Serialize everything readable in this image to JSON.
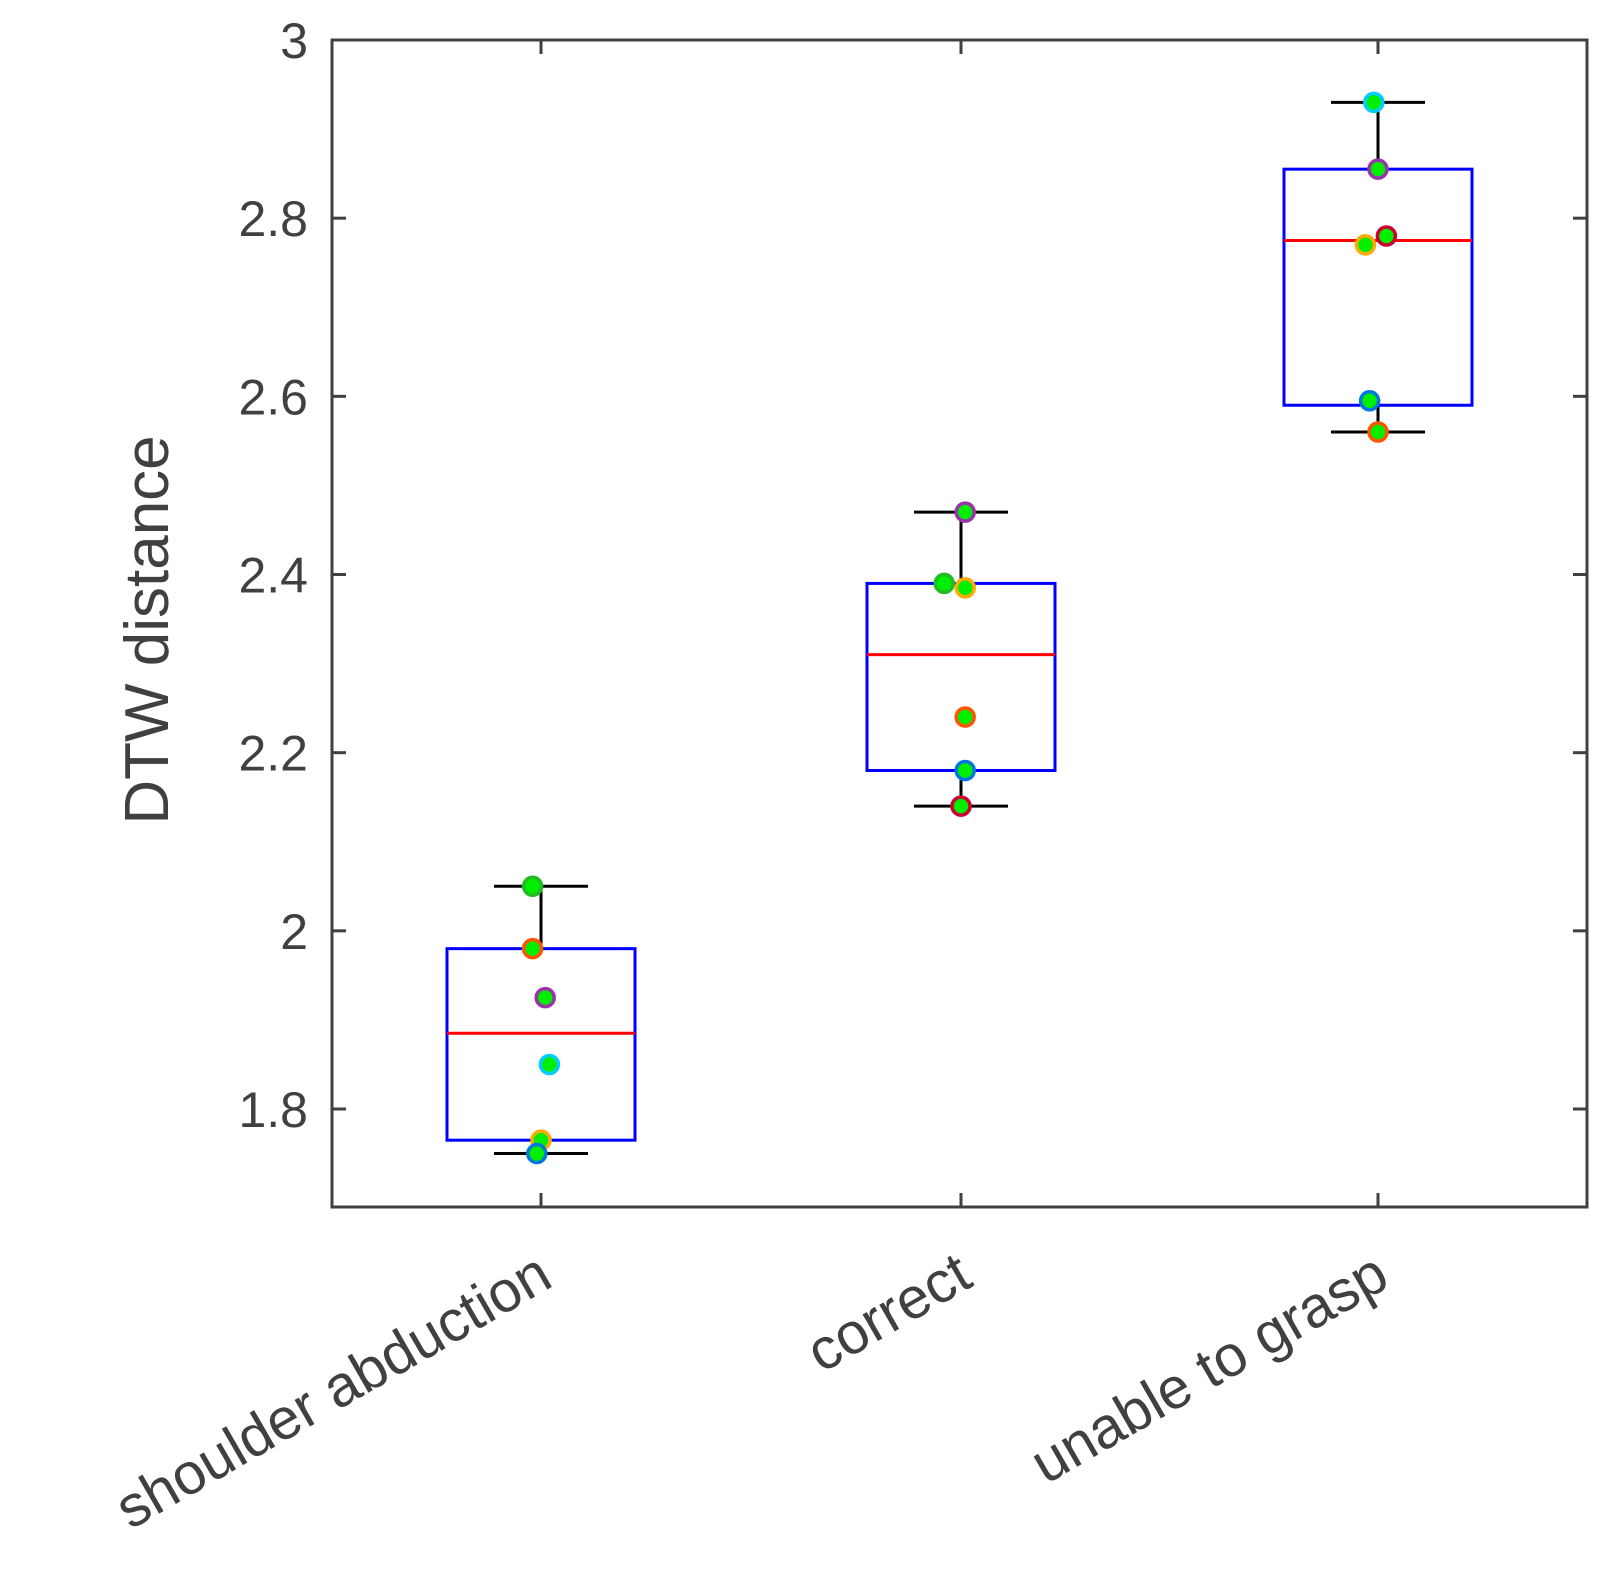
{
  "chart_data": {
    "type": "box",
    "title": "",
    "xlabel": "",
    "ylabel": "DTW distance",
    "ylim": [
      1.69,
      3.0
    ],
    "yticks": [
      1.8,
      2,
      2.2,
      2.4,
      2.6,
      2.8,
      3
    ],
    "ytick_labels": [
      "1.8",
      "2",
      "2.2",
      "2.4",
      "2.6",
      "2.8",
      "3"
    ],
    "categories": [
      "shoulder abduction",
      "correct",
      "unable to grasp"
    ],
    "boxes": [
      {
        "category": "shoulder abduction",
        "whisker_low": 1.75,
        "q1": 1.765,
        "median": 1.885,
        "q3": 1.98,
        "whisker_high": 2.05
      },
      {
        "category": "correct",
        "whisker_low": 2.14,
        "q1": 2.18,
        "median": 2.31,
        "q3": 2.39,
        "whisker_high": 2.47
      },
      {
        "category": "unable to grasp",
        "whisker_low": 2.56,
        "q1": 2.59,
        "median": 2.775,
        "q3": 2.855,
        "whisker_high": 2.93
      }
    ],
    "points": [
      {
        "category": 0,
        "offset": -0.02,
        "value": 2.05,
        "edge": "#22bb22"
      },
      {
        "category": 0,
        "offset": -0.02,
        "value": 1.98,
        "edge": "#ff5500"
      },
      {
        "category": 0,
        "offset": 0.01,
        "value": 1.925,
        "edge": "#9933aa"
      },
      {
        "category": 0,
        "offset": 0.02,
        "value": 1.85,
        "edge": "#00ccff"
      },
      {
        "category": 0,
        "offset": 0.0,
        "value": 1.765,
        "edge": "#ffaa00"
      },
      {
        "category": 0,
        "offset": -0.01,
        "value": 1.75,
        "edge": "#0077dd"
      },
      {
        "category": 1,
        "offset": 0.01,
        "value": 2.47,
        "edge": "#9933aa"
      },
      {
        "category": 1,
        "offset": -0.04,
        "value": 2.39,
        "edge": "#22bb22"
      },
      {
        "category": 1,
        "offset": 0.01,
        "value": 2.385,
        "edge": "#ffaa00"
      },
      {
        "category": 1,
        "offset": 0.01,
        "value": 2.24,
        "edge": "#ff5500"
      },
      {
        "category": 1,
        "offset": 0.01,
        "value": 2.18,
        "edge": "#0077dd"
      },
      {
        "category": 1,
        "offset": 0.0,
        "value": 2.14,
        "edge": "#cc0033"
      },
      {
        "category": 2,
        "offset": -0.01,
        "value": 2.93,
        "edge": "#00ccff"
      },
      {
        "category": 2,
        "offset": 0.0,
        "value": 2.855,
        "edge": "#9933aa"
      },
      {
        "category": 2,
        "offset": 0.02,
        "value": 2.78,
        "edge": "#cc0033"
      },
      {
        "category": 2,
        "offset": -0.03,
        "value": 2.77,
        "edge": "#ffaa00"
      },
      {
        "category": 2,
        "offset": -0.02,
        "value": 2.595,
        "edge": "#0077dd"
      },
      {
        "category": 2,
        "offset": 0.0,
        "value": 2.56,
        "edge": "#ff5500"
      }
    ],
    "colors": {
      "box": "#0000ff",
      "median": "#ff0000",
      "whisker": "#000000",
      "point_fill": "#00ee00",
      "axis": "#404040"
    },
    "grid": false,
    "legend": "none"
  }
}
